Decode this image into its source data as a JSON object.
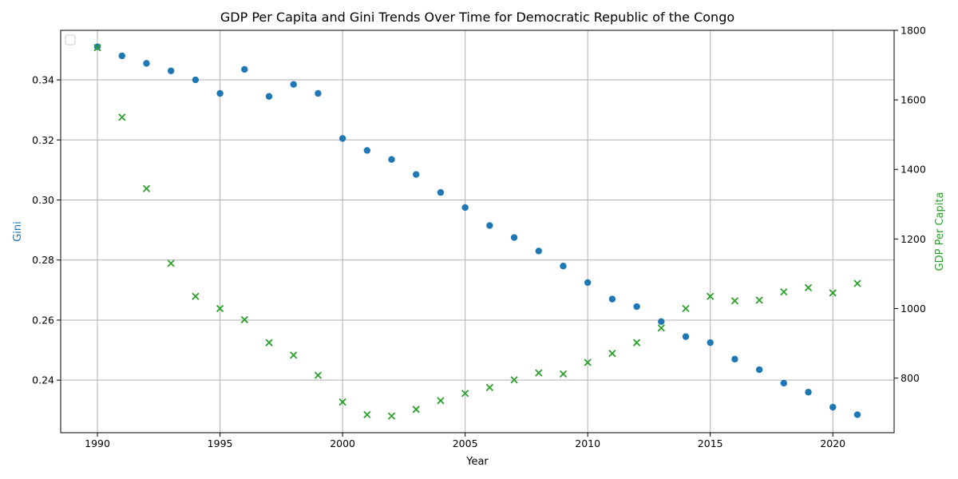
{
  "chart_data": {
    "type": "scatter",
    "title": "GDP Per Capita and Gini Trends Over Time for Democratic Republic of the Congo",
    "xlabel": "Year",
    "ylabel_left": "Gini",
    "ylabel_right": "GDP Per Capita",
    "xlim": [
      1988.5,
      2022.5
    ],
    "ylim_left": [
      0.2225,
      0.3565
    ],
    "ylim_right": [
      643,
      1800
    ],
    "x_ticks": [
      1990,
      1995,
      2000,
      2005,
      2010,
      2015,
      2020
    ],
    "y_left_ticks": [
      0.24,
      0.26,
      0.28,
      0.3,
      0.32,
      0.34
    ],
    "y_right_ticks": [
      800,
      1000,
      1200,
      1400,
      1600,
      1800
    ],
    "grid": true,
    "legend": "top-left",
    "colors": {
      "gini": "#1f77b4",
      "gdp": "#2ca02c"
    },
    "x": [
      1990,
      1991,
      1992,
      1993,
      1994,
      1995,
      1996,
      1997,
      1998,
      1999,
      2000,
      2001,
      2002,
      2003,
      2004,
      2005,
      2006,
      2007,
      2008,
      2009,
      2010,
      2011,
      2012,
      2013,
      2014,
      2015,
      2016,
      2017,
      2018,
      2019,
      2020,
      2021
    ],
    "series": [
      {
        "axis": "left",
        "marker": "circle",
        "values": [
          0.351,
          0.348,
          0.3455,
          0.343,
          0.34,
          0.3355,
          0.3435,
          0.3345,
          0.3385,
          0.3355,
          0.3205,
          0.3165,
          0.3135,
          0.3085,
          0.3025,
          0.2975,
          0.2915,
          0.2875,
          0.283,
          0.278,
          0.2725,
          0.267,
          0.2645,
          0.2595,
          0.2545,
          0.2525,
          0.247,
          0.2435,
          0.239,
          0.236,
          0.231,
          0.2285
        ]
      },
      {
        "axis": "right",
        "marker": "x",
        "values": [
          1750,
          1550,
          1345,
          1130,
          1035,
          1000,
          968,
          902,
          866,
          808,
          731,
          695,
          691,
          710,
          735,
          756,
          773,
          795,
          815,
          812,
          845,
          871,
          902,
          944,
          1000,
          1035,
          1022,
          1024,
          1048,
          1060,
          1045,
          1072
        ]
      }
    ]
  }
}
